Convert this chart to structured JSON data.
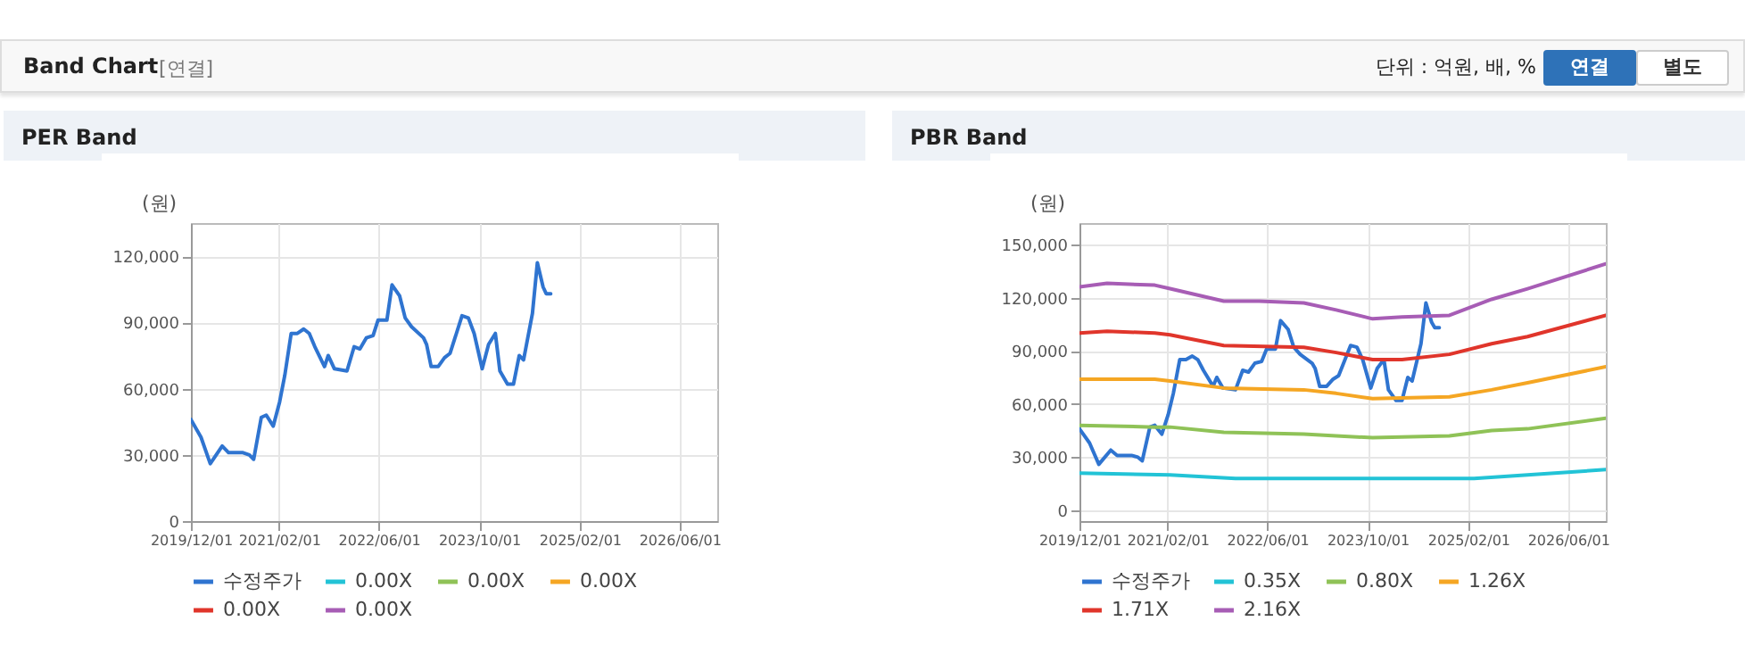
{
  "chart_data": [
    {
      "type": "other",
      "title": "Band Chart",
      "annotations": [
        "[연결]",
        "단위 : 억원, 배, %",
        "연결",
        "별도"
      ]
    },
    {
      "type": "line",
      "title": "PER Band",
      "ylabel": "(원)",
      "legend": "bottom",
      "grid": true,
      "marker": "none",
      "line_style": "solid",
      "xlim": [
        "2019-12-01",
        "2026-12-01"
      ],
      "xticks": [
        {
          "value": "2019-12-01",
          "label": "2019/12/01"
        },
        {
          "value": "2021-02-01",
          "label": "2021/02/01"
        },
        {
          "value": "2022-06-01",
          "label": "2022/06/01"
        },
        {
          "value": "2023-10-01",
          "label": "2023/10/01"
        },
        {
          "value": "2025-02-01",
          "label": "2025/02/01"
        },
        {
          "value": "2026-06-01",
          "label": "2026/06/01"
        }
      ],
      "ylim": [
        0,
        135000
      ],
      "yticks": [
        0,
        {
          "value": 30000,
          "label": "30,000"
        },
        {
          "value": 60000,
          "label": "60,000"
        },
        {
          "value": 90000,
          "label": "90,000"
        },
        {
          "value": 120000,
          "label": "120,000"
        }
      ],
      "series": [
        {
          "name": "수정주가",
          "color": "#2f74d0",
          "x": [
            "2019-12-01",
            "2020-01-19",
            "2020-03-04",
            "2020-05-01",
            "2020-06-01",
            "2020-08-10",
            "2020-09-10",
            "2020-10-01",
            "2020-11-07",
            "2020-12-01",
            "2021-01-04",
            "2021-02-04",
            "2021-03-01",
            "2021-04-01",
            "2021-05-01",
            "2021-06-01",
            "2021-06-28",
            "2021-07-25",
            "2021-09-10",
            "2021-09-28",
            "2021-10-28",
            "2021-12-28",
            "2022-02-01",
            "2022-03-01",
            "2022-04-01",
            "2022-05-04",
            "2022-05-28",
            "2022-07-10",
            "2022-08-04",
            "2022-09-10",
            "2022-10-07",
            "2022-11-07",
            "2023-01-04",
            "2023-01-19",
            "2023-02-10",
            "2023-03-16",
            "2023-04-16",
            "2023-05-13",
            "2023-07-10",
            "2023-08-10",
            "2023-09-07",
            "2023-10-16",
            "2023-11-16",
            "2023-12-19",
            "2024-01-10",
            "2024-02-16",
            "2024-03-16",
            "2024-04-13",
            "2024-05-04",
            "2024-06-16",
            "2024-07-10",
            "2024-08-07",
            "2024-08-22",
            "2024-09-13"
          ],
          "values": [
            46000,
            38000,
            26000,
            34000,
            31000,
            31000,
            30000,
            28000,
            47000,
            48000,
            43000,
            54000,
            66000,
            85000,
            85000,
            87000,
            85000,
            79000,
            70000,
            75000,
            69000,
            68000,
            79000,
            78000,
            83000,
            84000,
            91000,
            91000,
            107000,
            102000,
            92000,
            88000,
            83000,
            80000,
            70000,
            70000,
            74000,
            76000,
            93000,
            92000,
            85000,
            69000,
            80000,
            85000,
            68000,
            62000,
            62000,
            75000,
            73000,
            94000,
            117000,
            106000,
            103000,
            103000
          ]
        },
        {
          "name": "0.00X",
          "color": "#22c3d6"
        },
        {
          "name": "0.00X",
          "color": "#8fc257"
        },
        {
          "name": "0.00X",
          "color": "#f5a623"
        },
        {
          "name": "0.00X",
          "color": "#e0352b"
        },
        {
          "name": "0.00X",
          "color": "#a75db5"
        }
      ]
    },
    {
      "type": "line",
      "title": "PBR Band",
      "ylabel": "(원)",
      "legend": "bottom",
      "grid": true,
      "marker": "none",
      "line_style": "solid",
      "xlim": [
        "2019-12-01",
        "2026-12-01"
      ],
      "xticks": [
        {
          "value": "2019-12-01",
          "label": "2019/12/01"
        },
        {
          "value": "2021-02-01",
          "label": "2021/02/01"
        },
        {
          "value": "2022-06-01",
          "label": "2022/06/01"
        },
        {
          "value": "2023-10-01",
          "label": "2023/10/01"
        },
        {
          "value": "2025-02-01",
          "label": "2025/02/01"
        },
        {
          "value": "2026-06-01",
          "label": "2026/06/01"
        }
      ],
      "ylim": [
        -6000,
        162000
      ],
      "yticks": [
        0,
        {
          "value": 30000,
          "label": "30,000"
        },
        {
          "value": 60000,
          "label": "60,000"
        },
        {
          "value": 90000,
          "label": "90,000"
        },
        {
          "value": 120000,
          "label": "120,000"
        },
        {
          "value": 150000,
          "label": "150,000"
        }
      ],
      "series": [
        {
          "name": "수정주가",
          "color": "#2f74d0",
          "x": [
            "2019-12-01",
            "2020-01-19",
            "2020-03-04",
            "2020-05-01",
            "2020-06-01",
            "2020-08-10",
            "2020-09-10",
            "2020-10-01",
            "2020-11-07",
            "2020-12-01",
            "2021-01-04",
            "2021-02-04",
            "2021-03-01",
            "2021-04-01",
            "2021-05-01",
            "2021-06-01",
            "2021-06-28",
            "2021-07-25",
            "2021-09-10",
            "2021-09-28",
            "2021-10-28",
            "2021-12-28",
            "2022-02-01",
            "2022-03-01",
            "2022-04-01",
            "2022-05-04",
            "2022-05-28",
            "2022-07-10",
            "2022-08-04",
            "2022-09-10",
            "2022-10-07",
            "2022-11-07",
            "2023-01-04",
            "2023-01-19",
            "2023-02-10",
            "2023-03-16",
            "2023-04-16",
            "2023-05-13",
            "2023-07-10",
            "2023-08-10",
            "2023-09-07",
            "2023-10-16",
            "2023-11-16",
            "2023-12-19",
            "2024-01-10",
            "2024-02-16",
            "2024-03-16",
            "2024-04-13",
            "2024-05-04",
            "2024-06-16",
            "2024-07-10",
            "2024-08-07",
            "2024-08-22",
            "2024-09-13"
          ],
          "values": [
            46000,
            38000,
            26000,
            34000,
            31000,
            31000,
            30000,
            28000,
            47000,
            48000,
            43000,
            54000,
            66000,
            85000,
            85000,
            87000,
            85000,
            79000,
            70000,
            75000,
            69000,
            68000,
            79000,
            78000,
            83000,
            84000,
            91000,
            91000,
            107000,
            102000,
            92000,
            88000,
            83000,
            80000,
            70000,
            70000,
            74000,
            76000,
            93000,
            92000,
            85000,
            69000,
            80000,
            85000,
            68000,
            62000,
            62000,
            75000,
            73000,
            94000,
            117000,
            106000,
            103000,
            103000
          ]
        },
        {
          "name": "0.35X",
          "color": "#22c3d6",
          "x": [
            "2019-12-01",
            "2021-02-13",
            "2021-12-28",
            "2023-05-01",
            "2025-03-01",
            "2025-11-16",
            "2026-12-01"
          ],
          "values": [
            21000,
            20000,
            18000,
            18000,
            18000,
            20000,
            23000
          ]
        },
        {
          "name": "0.80X",
          "color": "#8fc257",
          "x": [
            "2019-12-01",
            "2020-12-01",
            "2021-02-13",
            "2021-11-01",
            "2022-11-25",
            "2023-05-01",
            "2023-10-25",
            "2024-11-01",
            "2025-05-25",
            "2025-11-16",
            "2026-12-01"
          ],
          "values": [
            48000,
            47000,
            47000,
            44000,
            43000,
            42000,
            41000,
            42000,
            45000,
            46000,
            52000
          ]
        },
        {
          "name": "1.26X",
          "color": "#f5a623",
          "x": [
            "2019-12-01",
            "2020-12-01",
            "2021-02-13",
            "2021-11-01",
            "2022-11-25",
            "2023-05-01",
            "2023-10-25",
            "2024-11-01",
            "2025-05-25",
            "2025-11-16",
            "2026-12-01"
          ],
          "values": [
            74000,
            74000,
            73000,
            69000,
            68000,
            66000,
            63000,
            64000,
            68000,
            72000,
            81000
          ]
        },
        {
          "name": "1.71X",
          "color": "#e0352b",
          "x": [
            "2019-12-01",
            "2020-04-13",
            "2020-12-01",
            "2021-02-13",
            "2021-11-01",
            "2022-11-25",
            "2023-05-01",
            "2023-10-25",
            "2024-03-16",
            "2024-11-01",
            "2025-05-25",
            "2025-11-16",
            "2026-12-01"
          ],
          "values": [
            100000,
            101000,
            100000,
            99000,
            93000,
            92000,
            89000,
            85000,
            85000,
            88000,
            94000,
            98000,
            110000
          ]
        },
        {
          "name": "2.16X",
          "color": "#a75db5",
          "x": [
            "2019-12-01",
            "2020-04-13",
            "2020-12-01",
            "2021-02-13",
            "2021-11-01",
            "2022-04-22",
            "2022-11-25",
            "2023-05-01",
            "2023-10-25",
            "2024-03-16",
            "2024-11-01",
            "2025-05-25",
            "2025-11-16",
            "2026-12-01"
          ],
          "values": [
            126000,
            128000,
            127000,
            125000,
            118000,
            118000,
            117000,
            113000,
            108000,
            109000,
            110000,
            119000,
            125000,
            139000
          ]
        }
      ]
    }
  ]
}
